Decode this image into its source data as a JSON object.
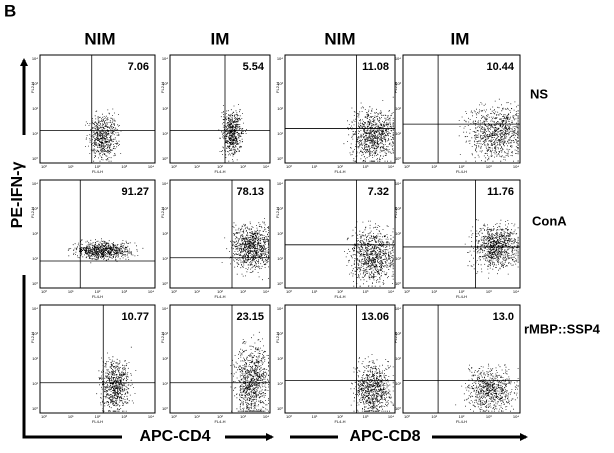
{
  "panel_label": "B",
  "columns": [
    "NIM",
    "IM",
    "NIM",
    "IM"
  ],
  "rows": [
    {
      "label": "NS",
      "percentages": [
        "7.06",
        "5.54",
        "11.08",
        "10.44"
      ]
    },
    {
      "label": "ConA",
      "percentages": [
        "91.27",
        "78.13",
        "7.32",
        "11.76"
      ]
    },
    {
      "label": "rMBP::SSP4",
      "percentages": [
        "10.77",
        "23.15",
        "13.06",
        "13.0"
      ]
    }
  ],
  "y_axis_label": "PE-IFN-γ",
  "x_axis_labels": [
    "APC-CD4",
    "APC-CD8"
  ],
  "plot": {
    "x_channel": "FL4-H",
    "y_channel": "FL2-H",
    "tick_labels": [
      "10⁰",
      "10¹",
      "10²",
      "10³",
      "10⁴"
    ]
  }
}
